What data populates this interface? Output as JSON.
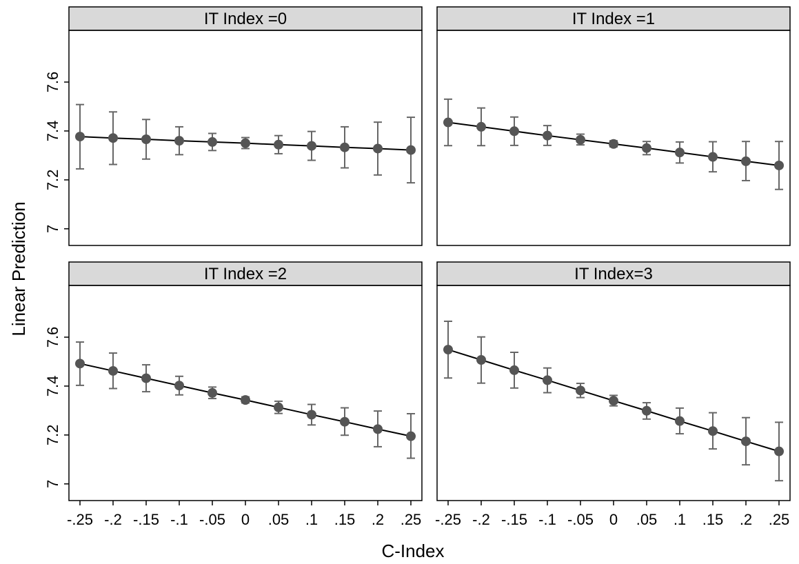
{
  "chart_data": {
    "type": "line",
    "xlabel": "C-Index",
    "ylabel": "Linear Prediction",
    "x": [
      -0.25,
      -0.2,
      -0.15,
      -0.1,
      -0.05,
      0,
      0.05,
      0.1,
      0.15,
      0.2,
      0.25
    ],
    "x_tick_labels": [
      "-.25",
      "-.2",
      "-.15",
      "-.1",
      "-.05",
      "0",
      ".05",
      ".1",
      ".15",
      ".2",
      ".25"
    ],
    "y_ticks": [
      7,
      7.2,
      7.4,
      7.6
    ],
    "y_tick_labels": [
      "7",
      "7.2",
      "7.4",
      "7.6"
    ],
    "ylim": [
      6.96,
      7.71
    ],
    "error_bars": true,
    "grid": false,
    "colors": {
      "marker": "#555555",
      "line": "#000000",
      "error_bar": "#666666",
      "strip_bg": "#d9d9d9",
      "frame": "#000000"
    },
    "panels": [
      {
        "title": "IT Index =0",
        "y": [
          7.377,
          7.371,
          7.366,
          7.36,
          7.355,
          7.35,
          7.344,
          7.339,
          7.333,
          7.328,
          7.322
        ],
        "lower": [
          7.245,
          7.263,
          7.285,
          7.303,
          7.32,
          7.328,
          7.307,
          7.28,
          7.249,
          7.22,
          7.188
        ],
        "upper": [
          7.508,
          7.478,
          7.447,
          7.417,
          7.39,
          7.373,
          7.381,
          7.398,
          7.417,
          7.436,
          7.456
        ]
      },
      {
        "title": "IT Index =1",
        "y": [
          7.435,
          7.417,
          7.399,
          7.381,
          7.364,
          7.347,
          7.33,
          7.312,
          7.294,
          7.276,
          7.259
        ],
        "lower": [
          7.34,
          7.34,
          7.341,
          7.341,
          7.343,
          7.335,
          7.303,
          7.269,
          7.233,
          7.197,
          7.161
        ],
        "upper": [
          7.53,
          7.494,
          7.457,
          7.422,
          7.387,
          7.36,
          7.357,
          7.355,
          7.356,
          7.357,
          7.357
        ]
      },
      {
        "title": "IT Index =2",
        "y": [
          7.492,
          7.462,
          7.432,
          7.402,
          7.372,
          7.343,
          7.313,
          7.283,
          7.254,
          7.224,
          7.195
        ],
        "lower": [
          7.403,
          7.39,
          7.377,
          7.364,
          7.349,
          7.331,
          7.288,
          7.241,
          7.199,
          7.152,
          7.105
        ],
        "upper": [
          7.58,
          7.535,
          7.487,
          7.44,
          7.396,
          7.356,
          7.338,
          7.325,
          7.311,
          7.298,
          7.287
        ]
      },
      {
        "title": "IT Index=3",
        "y": [
          7.549,
          7.507,
          7.465,
          7.424,
          7.382,
          7.34,
          7.299,
          7.257,
          7.216,
          7.174,
          7.133
        ],
        "lower": [
          7.433,
          7.412,
          7.392,
          7.373,
          7.353,
          7.319,
          7.265,
          7.205,
          7.143,
          7.078,
          7.013
        ],
        "upper": [
          7.665,
          7.601,
          7.538,
          7.474,
          7.411,
          7.362,
          7.332,
          7.31,
          7.291,
          7.271,
          7.252
        ]
      }
    ]
  }
}
